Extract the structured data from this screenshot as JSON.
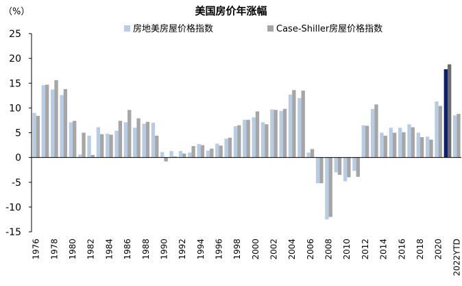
{
  "chart_data": {
    "type": "bar",
    "title": "美国房价年涨幅",
    "unit_label": "（%）",
    "xlabel": "",
    "ylabel": "",
    "ylim": [
      -15,
      25
    ],
    "yticks": [
      -15,
      -10,
      -5,
      0,
      5,
      10,
      15,
      20,
      25
    ],
    "categories": [
      "1976",
      "1977",
      "1978",
      "1979",
      "1980",
      "1981",
      "1982",
      "1983",
      "1984",
      "1985",
      "1986",
      "1987",
      "1988",
      "1989",
      "1990",
      "1991",
      "1992",
      "1993",
      "1994",
      "1995",
      "1996",
      "1997",
      "1998",
      "1999",
      "2000",
      "2001",
      "2002",
      "2003",
      "2004",
      "2005",
      "2006",
      "2007",
      "2008",
      "2009",
      "2010",
      "2011",
      "2012",
      "2013",
      "2014",
      "2015",
      "2016",
      "2017",
      "2018",
      "2019",
      "2020",
      "2021",
      "2022YTD"
    ],
    "x_tick_labels": [
      "1976",
      "1978",
      "1980",
      "1982",
      "1984",
      "1986",
      "1988",
      "1990",
      "1992",
      "1994",
      "1996",
      "1998",
      "2000",
      "2002",
      "2004",
      "2006",
      "2008",
      "2010",
      "2012",
      "2014",
      "2016",
      "2018",
      "2020",
      "2022YTD"
    ],
    "legend_position": "top",
    "grid": false,
    "series": [
      {
        "name": "房地美房屋价格指数",
        "color": "#b8cce4",
        "highlight_color": "#0b1f6e",
        "highlight_index": 45,
        "values": [
          9.0,
          14.6,
          13.7,
          12.6,
          7.1,
          0.6,
          4.4,
          6.1,
          4.8,
          5.4,
          7.1,
          6.0,
          6.8,
          7.0,
          1.1,
          1.3,
          1.3,
          1.0,
          2.7,
          1.4,
          2.8,
          3.8,
          6.3,
          7.6,
          8.1,
          7.1,
          9.7,
          9.4,
          12.7,
          12.0,
          1.0,
          -5.2,
          -12.5,
          -3.0,
          -4.8,
          -2.7,
          6.5,
          9.8,
          5.0,
          6.0,
          6.0,
          6.7,
          5.0,
          4.2,
          11.3,
          17.8,
          8.5
        ]
      },
      {
        "name": "Case-Shiller房屋价格指数",
        "color": "#a6a6a6",
        "highlight_color": "#6d6d6d",
        "highlight_index": 45,
        "values": [
          8.4,
          14.7,
          15.6,
          13.8,
          7.4,
          5.0,
          0.5,
          4.7,
          4.6,
          7.4,
          9.6,
          7.9,
          7.2,
          4.4,
          -0.8,
          0.2,
          0.8,
          2.3,
          2.5,
          1.8,
          2.4,
          4.0,
          6.5,
          7.6,
          9.3,
          6.7,
          9.6,
          9.8,
          13.6,
          13.5,
          1.7,
          -5.2,
          -12.0,
          -3.5,
          -4.0,
          -3.9,
          6.4,
          10.7,
          4.4,
          5.0,
          5.1,
          6.1,
          4.1,
          3.6,
          10.4,
          18.8,
          8.8
        ]
      }
    ]
  }
}
